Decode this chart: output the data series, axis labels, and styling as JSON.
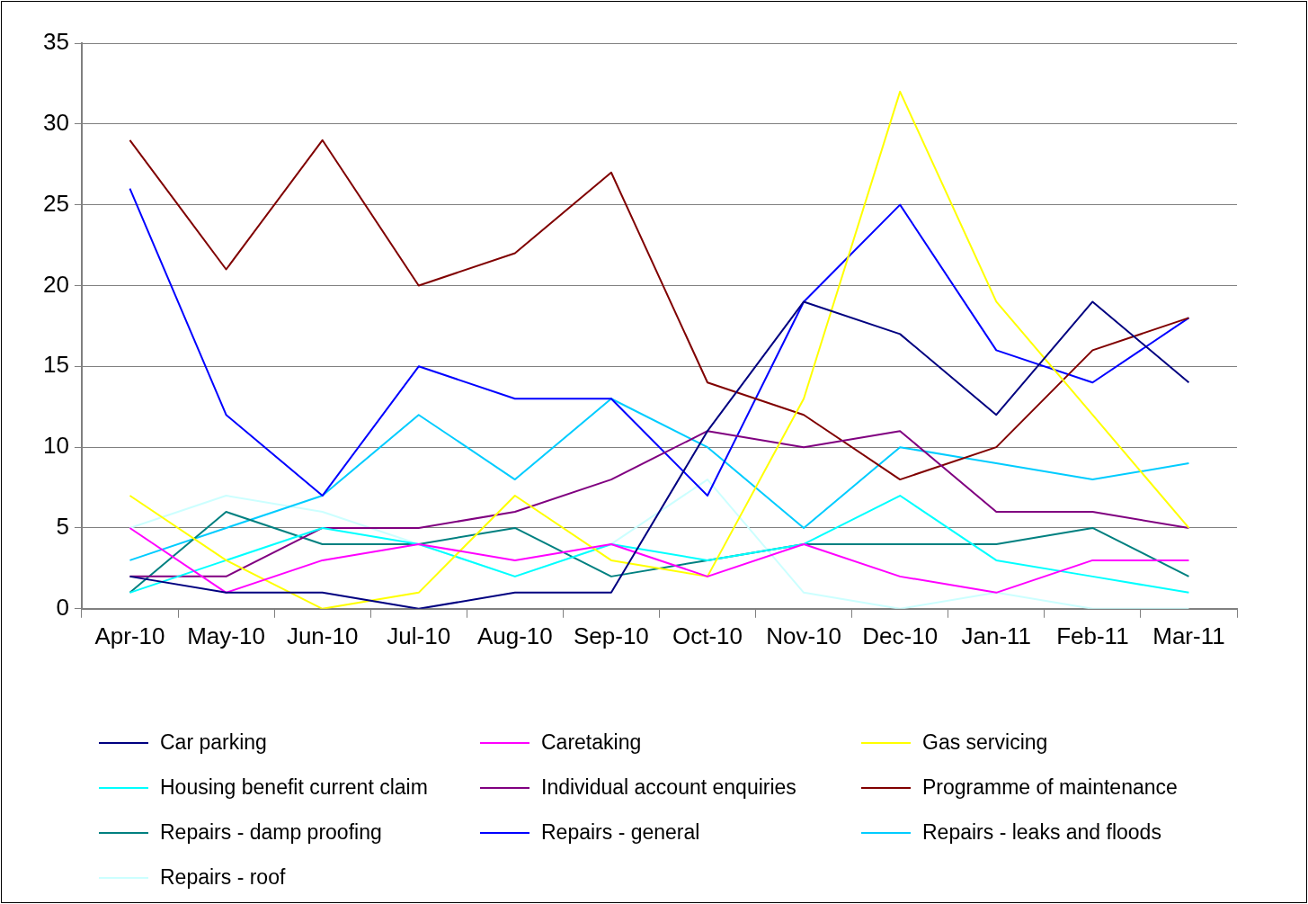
{
  "chart_data": {
    "type": "line",
    "categories": [
      "Apr-10",
      "May-10",
      "Jun-10",
      "Jul-10",
      "Aug-10",
      "Sep-10",
      "Oct-10",
      "Nov-10",
      "Dec-10",
      "Jan-11",
      "Feb-11",
      "Mar-11"
    ],
    "ylim": [
      0,
      35
    ],
    "yticks": [
      0,
      5,
      10,
      15,
      20,
      25,
      30,
      35
    ],
    "grid": "y",
    "legend": "bottom",
    "marker": "none",
    "line_style": "solid",
    "series": [
      {
        "name": "Car parking",
        "color": "#000080",
        "values": [
          2,
          1,
          1,
          0,
          1,
          1,
          11,
          19,
          17,
          12,
          19,
          14
        ]
      },
      {
        "name": "Caretaking",
        "color": "#ff00ff",
        "values": [
          5,
          1,
          3,
          4,
          3,
          4,
          2,
          4,
          2,
          1,
          3,
          3
        ]
      },
      {
        "name": "Gas servicing",
        "color": "#ffff00",
        "values": [
          7,
          3,
          0,
          1,
          7,
          3,
          2,
          13,
          32,
          19,
          12,
          5
        ]
      },
      {
        "name": "Housing benefit current claim",
        "color": "#00ffff",
        "values": [
          1,
          3,
          5,
          4,
          2,
          4,
          3,
          4,
          7,
          3,
          2,
          1
        ]
      },
      {
        "name": "Individual account enquiries",
        "color": "#800080",
        "values": [
          2,
          2,
          5,
          5,
          6,
          8,
          11,
          10,
          11,
          6,
          6,
          5
        ]
      },
      {
        "name": "Programme of maintenance",
        "color": "#800000",
        "values": [
          29,
          21,
          29,
          20,
          22,
          27,
          14,
          12,
          8,
          10,
          16,
          18
        ]
      },
      {
        "name": "Repairs - damp proofing",
        "color": "#008080",
        "values": [
          1,
          6,
          4,
          4,
          5,
          2,
          3,
          4,
          4,
          4,
          5,
          2
        ]
      },
      {
        "name": "Repairs - general",
        "color": "#0000ff",
        "values": [
          26,
          12,
          7,
          15,
          13,
          13,
          7,
          19,
          25,
          16,
          14,
          18
        ]
      },
      {
        "name": "Repairs - leaks and floods",
        "color": "#00ccff",
        "values": [
          3,
          5,
          7,
          12,
          8,
          13,
          10,
          5,
          10,
          9,
          8,
          9
        ]
      },
      {
        "name": "Repairs - roof",
        "color": "#ccffff",
        "values": [
          5,
          7,
          6,
          4,
          2,
          4,
          8,
          1,
          0,
          1,
          0,
          0
        ]
      }
    ]
  }
}
